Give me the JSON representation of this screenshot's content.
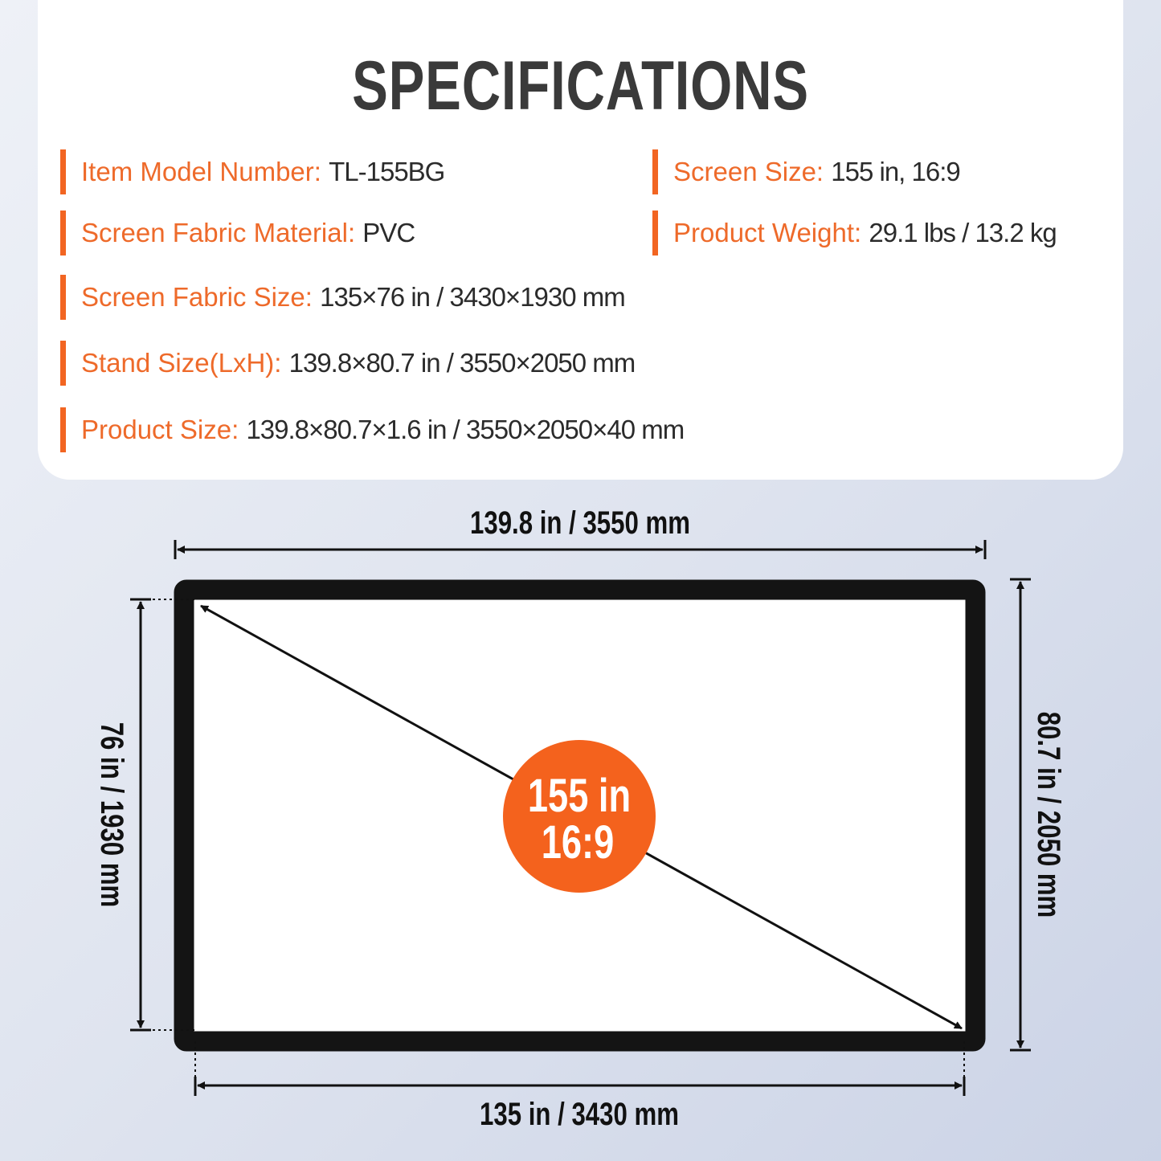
{
  "title": "SPECIFICATIONS",
  "specs": [
    {
      "label": "Item Model Number:",
      "value": "TL-155BG"
    },
    {
      "label": "Screen Size:",
      "value": "155 in, 16:9"
    },
    {
      "label": "Screen Fabric Material:",
      "value": "PVC"
    },
    {
      "label": "Product Weight:",
      "value": "29.1 lbs / 13.2 kg"
    },
    {
      "label": "Screen Fabric Size:",
      "value": "135×76 in / 3430×1930 mm"
    },
    {
      "label": "Stand Size(LxH):",
      "value": "139.8×80.7 in / 3550×2050 mm"
    },
    {
      "label": "Product Size:",
      "value": "139.8×80.7×1.6 in / 3550×2050×40 mm"
    }
  ],
  "diagram": {
    "top_width": "139.8 in / 3550 mm",
    "bottom_width": "135 in / 3430 mm",
    "left_height": "76 in / 1930 mm",
    "right_height": "80.7 in / 2050 mm",
    "badge_size": "155 in",
    "badge_ratio": "16:9"
  },
  "colors": {
    "accent": "#f26522",
    "badge": "#f4621d",
    "frame": "#141414"
  }
}
